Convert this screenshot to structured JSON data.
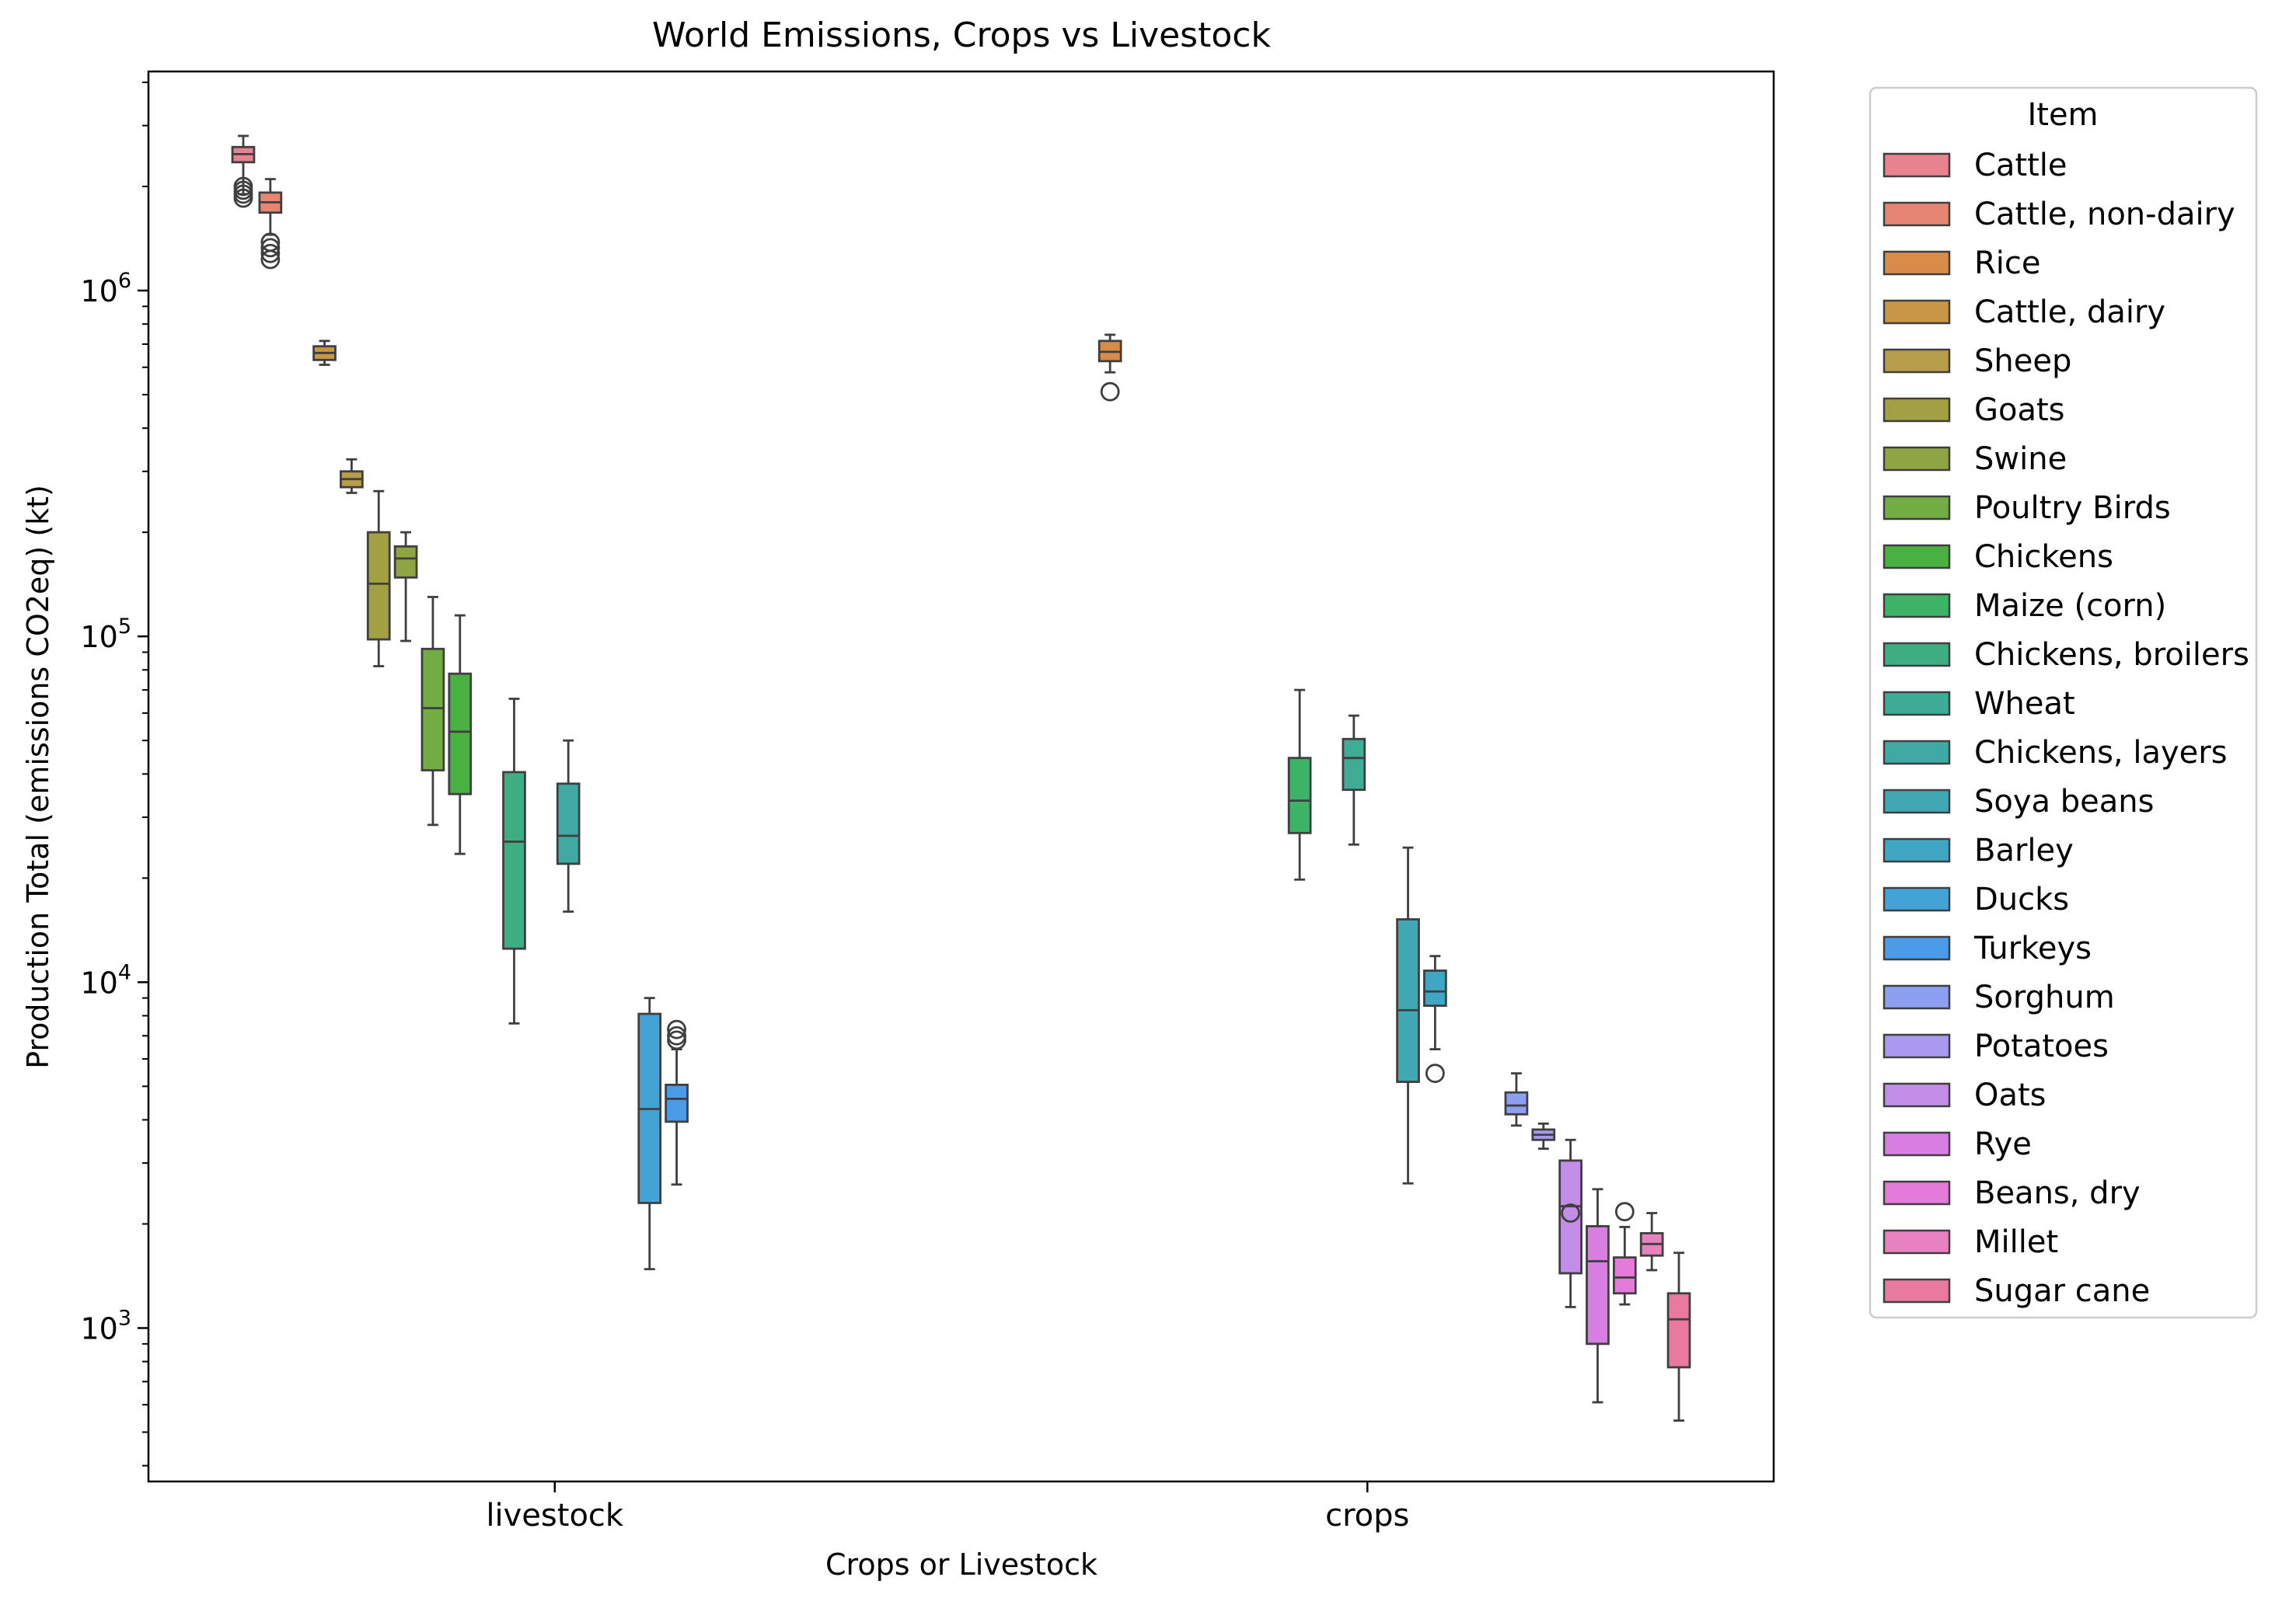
{
  "chart_data": {
    "type": "box",
    "title": "World Emissions, Crops vs Livestock",
    "xlabel": "Crops or Livestock",
    "ylabel": "Production Total (emissions CO2eq) (kt)",
    "yscale": "log",
    "ylim": [
      360,
      4300000
    ],
    "yticks": [
      {
        "value": 1000,
        "base": "10",
        "exp": "3"
      },
      {
        "value": 10000,
        "base": "10",
        "exp": "4"
      },
      {
        "value": 100000,
        "base": "10",
        "exp": "5"
      },
      {
        "value": 1000000,
        "base": "10",
        "exp": "6"
      }
    ],
    "categories": [
      "livestock",
      "crops"
    ],
    "legend": {
      "title": "Item",
      "placement": "outside-right",
      "items": [
        {
          "name": "Cattle",
          "color": "#e8828f"
        },
        {
          "name": "Cattle, non-dairy",
          "color": "#e58672"
        },
        {
          "name": "Rice",
          "color": "#d88c4a"
        },
        {
          "name": "Cattle, dairy",
          "color": "#c99648"
        },
        {
          "name": "Sheep",
          "color": "#b79c4a"
        },
        {
          "name": "Goats",
          "color": "#a2a043"
        },
        {
          "name": "Swine",
          "color": "#8fa543"
        },
        {
          "name": "Poultry Birds",
          "color": "#72ad44"
        },
        {
          "name": "Chickens",
          "color": "#48b142"
        },
        {
          "name": "Maize (corn)",
          "color": "#3db368"
        },
        {
          "name": "Chickens, broilers",
          "color": "#3eae82"
        },
        {
          "name": "Wheat",
          "color": "#3fac95"
        },
        {
          "name": "Chickens, layers",
          "color": "#3faaa4"
        },
        {
          "name": "Soya beans",
          "color": "#40a8b3"
        },
        {
          "name": "Barley",
          "color": "#41a6c3"
        },
        {
          "name": "Ducks",
          "color": "#44a3d6"
        },
        {
          "name": "Turkeys",
          "color": "#4c9be8"
        },
        {
          "name": "Sorghum",
          "color": "#8c9ff0"
        },
        {
          "name": "Potatoes",
          "color": "#a99af0"
        },
        {
          "name": "Oats",
          "color": "#c28ee8"
        },
        {
          "name": "Rye",
          "color": "#d87ee3"
        },
        {
          "name": "Beans, dry",
          "color": "#e47ad9"
        },
        {
          "name": "Millet",
          "color": "#e881c0"
        },
        {
          "name": "Sugar cane",
          "color": "#e8799f"
        }
      ]
    },
    "series": [
      {
        "category": "livestock",
        "item": "Cattle",
        "whisker_low": 1900000,
        "q1": 2350000,
        "median": 2480000,
        "q3": 2600000,
        "whisker_high": 2800000,
        "outliers": [
          1850000,
          1900000,
          1950000,
          2000000
        ]
      },
      {
        "category": "livestock",
        "item": "Cattle, non-dairy",
        "whisker_low": 1450000,
        "q1": 1680000,
        "median": 1800000,
        "q3": 1920000,
        "whisker_high": 2100000,
        "outliers": [
          1230000,
          1280000,
          1330000,
          1380000
        ]
      },
      {
        "category": "livestock",
        "item": "Cattle, dairy",
        "whisker_low": 610000,
        "q1": 630000,
        "median": 660000,
        "q3": 690000,
        "whisker_high": 715000,
        "outliers": []
      },
      {
        "category": "livestock",
        "item": "Sheep",
        "whisker_low": 260000,
        "q1": 270000,
        "median": 285000,
        "q3": 300000,
        "whisker_high": 325000,
        "outliers": []
      },
      {
        "category": "livestock",
        "item": "Goats",
        "whisker_low": 82000,
        "q1": 98000,
        "median": 142000,
        "q3": 200000,
        "whisker_high": 263000,
        "outliers": []
      },
      {
        "category": "livestock",
        "item": "Swine",
        "whisker_low": 97000,
        "q1": 148000,
        "median": 168000,
        "q3": 182000,
        "whisker_high": 200000,
        "outliers": []
      },
      {
        "category": "livestock",
        "item": "Poultry Birds",
        "whisker_low": 28500,
        "q1": 41000,
        "median": 62000,
        "q3": 92000,
        "whisker_high": 130000,
        "outliers": []
      },
      {
        "category": "livestock",
        "item": "Chickens",
        "whisker_low": 23500,
        "q1": 35000,
        "median": 53000,
        "q3": 78000,
        "whisker_high": 115000,
        "outliers": []
      },
      {
        "category": "livestock",
        "item": "Chickens, broilers",
        "whisker_low": 7600,
        "q1": 12500,
        "median": 25500,
        "q3": 40500,
        "whisker_high": 66000,
        "outliers": []
      },
      {
        "category": "livestock",
        "item": "Chickens, layers",
        "whisker_low": 16000,
        "q1": 22000,
        "median": 26500,
        "q3": 37500,
        "whisker_high": 50000,
        "outliers": []
      },
      {
        "category": "livestock",
        "item": "Ducks",
        "whisker_low": 1480,
        "q1": 2300,
        "median": 4300,
        "q3": 8100,
        "whisker_high": 9000,
        "outliers": []
      },
      {
        "category": "livestock",
        "item": "Turkeys",
        "whisker_low": 2600,
        "q1": 3950,
        "median": 4600,
        "q3": 5050,
        "whisker_high": 6400,
        "outliers": [
          6800,
          7000,
          7300
        ]
      },
      {
        "category": "crops",
        "item": "Rice",
        "whisker_low": 580000,
        "q1": 625000,
        "median": 665000,
        "q3": 715000,
        "whisker_high": 745000,
        "outliers": [
          510000
        ]
      },
      {
        "category": "crops",
        "item": "Maize (corn)",
        "whisker_low": 19800,
        "q1": 27000,
        "median": 33500,
        "q3": 44500,
        "whisker_high": 70000,
        "outliers": []
      },
      {
        "category": "crops",
        "item": "Wheat",
        "whisker_low": 25000,
        "q1": 36000,
        "median": 44500,
        "q3": 50500,
        "whisker_high": 59000,
        "outliers": []
      },
      {
        "category": "crops",
        "item": "Soya beans",
        "whisker_low": 2620,
        "q1": 5150,
        "median": 8300,
        "q3": 15200,
        "whisker_high": 24500,
        "outliers": []
      },
      {
        "category": "crops",
        "item": "Barley",
        "whisker_low": 6400,
        "q1": 8550,
        "median": 9400,
        "q3": 10800,
        "whisker_high": 11900,
        "outliers": [
          5450
        ]
      },
      {
        "category": "crops",
        "item": "Sorghum",
        "whisker_low": 3850,
        "q1": 4150,
        "median": 4400,
        "q3": 4800,
        "whisker_high": 5450,
        "outliers": []
      },
      {
        "category": "crops",
        "item": "Potatoes",
        "whisker_low": 3300,
        "q1": 3500,
        "median": 3620,
        "q3": 3750,
        "whisker_high": 3900,
        "outliers": []
      },
      {
        "category": "crops",
        "item": "Oats",
        "whisker_low": 1150,
        "q1": 1440,
        "median": 2250,
        "q3": 3050,
        "whisker_high": 3500,
        "outliers": [
          2150
        ]
      },
      {
        "category": "crops",
        "item": "Rye",
        "whisker_low": 610,
        "q1": 900,
        "median": 1560,
        "q3": 1970,
        "whisker_high": 2520,
        "outliers": []
      },
      {
        "category": "crops",
        "item": "Beans, dry",
        "whisker_low": 1170,
        "q1": 1260,
        "median": 1400,
        "q3": 1600,
        "whisker_high": 1960,
        "outliers": [
          2170
        ]
      },
      {
        "category": "crops",
        "item": "Millet",
        "whisker_low": 1470,
        "q1": 1620,
        "median": 1750,
        "q3": 1880,
        "whisker_high": 2150,
        "outliers": []
      },
      {
        "category": "crops",
        "item": "Sugar cane",
        "whisker_low": 540,
        "q1": 770,
        "median": 1060,
        "q3": 1260,
        "whisker_high": 1650,
        "outliers": []
      }
    ]
  }
}
